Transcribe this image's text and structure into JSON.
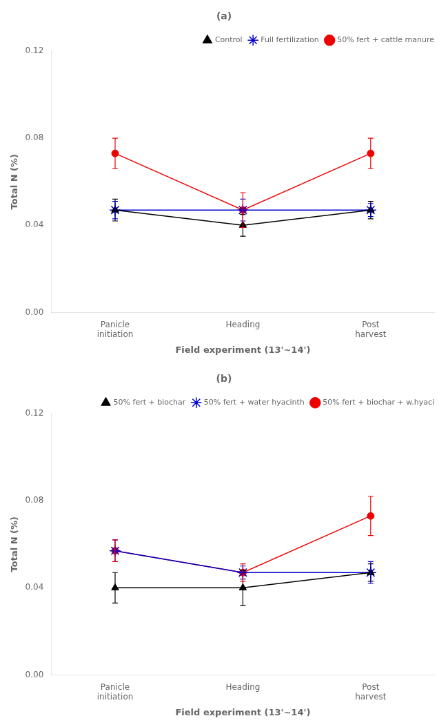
{
  "chart_data": [
    {
      "type": "line",
      "title": "(a)",
      "x_label": "Field experiment (13'~14')",
      "y_label": "Total N (%)",
      "categories": [
        "Panicle\ninitiation",
        "Heading",
        "Post\nharvest"
      ],
      "series": [
        {
          "name": "Control",
          "color": "#000000",
          "marker": "triangle",
          "values": [
            0.047,
            0.04,
            0.047
          ],
          "errors": [
            0.005,
            0.005,
            0.004
          ]
        },
        {
          "name": "Full fertilization",
          "color": "#0000cc",
          "marker": "star",
          "values": [
            0.047,
            0.047,
            0.047
          ],
          "errors": [
            0.004,
            0.005,
            0.003
          ]
        },
        {
          "name": "50% fert + cattle manure",
          "color": "#ee0000",
          "marker": "circle",
          "values": [
            0.073,
            0.047,
            0.073
          ],
          "errors": [
            0.007,
            0.008,
            0.007
          ]
        }
      ],
      "ylim": [
        0.0,
        0.12
      ],
      "yticks": [
        {
          "value": 0.0,
          "label": "0.00"
        },
        {
          "value": 0.04,
          "label": "0.04"
        },
        {
          "value": 0.08,
          "label": "0.08"
        },
        {
          "value": 0.12,
          "label": "0.12"
        }
      ],
      "grid": false,
      "legend": "upper right"
    },
    {
      "type": "line",
      "title": "(b)",
      "x_label": "Field experiment (13'~14')",
      "y_label": "Total N (%)",
      "categories": [
        "Panicle\ninitiation",
        "Heading",
        "Post\nharvest"
      ],
      "series": [
        {
          "name": "50% fert + biochar",
          "color": "#000000",
          "marker": "triangle",
          "values": [
            0.04,
            0.04,
            0.047
          ],
          "errors": [
            0.007,
            0.008,
            0.004
          ]
        },
        {
          "name": "50% fert + water hyacinth",
          "color": "#0000cc",
          "marker": "star",
          "values": [
            0.057,
            0.047,
            0.047
          ],
          "errors": [
            0.005,
            0.003,
            0.005
          ]
        },
        {
          "name": "50% fert + biochar + w.hyaci",
          "color": "#ee0000",
          "marker": "circle",
          "values": [
            0.057,
            0.047,
            0.073
          ],
          "errors": [
            0.005,
            0.004,
            0.009
          ]
        }
      ],
      "ylim": [
        0.0,
        0.12
      ],
      "yticks": [
        {
          "value": 0.0,
          "label": "0.00"
        },
        {
          "value": 0.04,
          "label": "0.04"
        },
        {
          "value": 0.08,
          "label": "0.08"
        },
        {
          "value": 0.12,
          "label": "0.12"
        }
      ],
      "grid": false,
      "legend": "upper right"
    }
  ]
}
